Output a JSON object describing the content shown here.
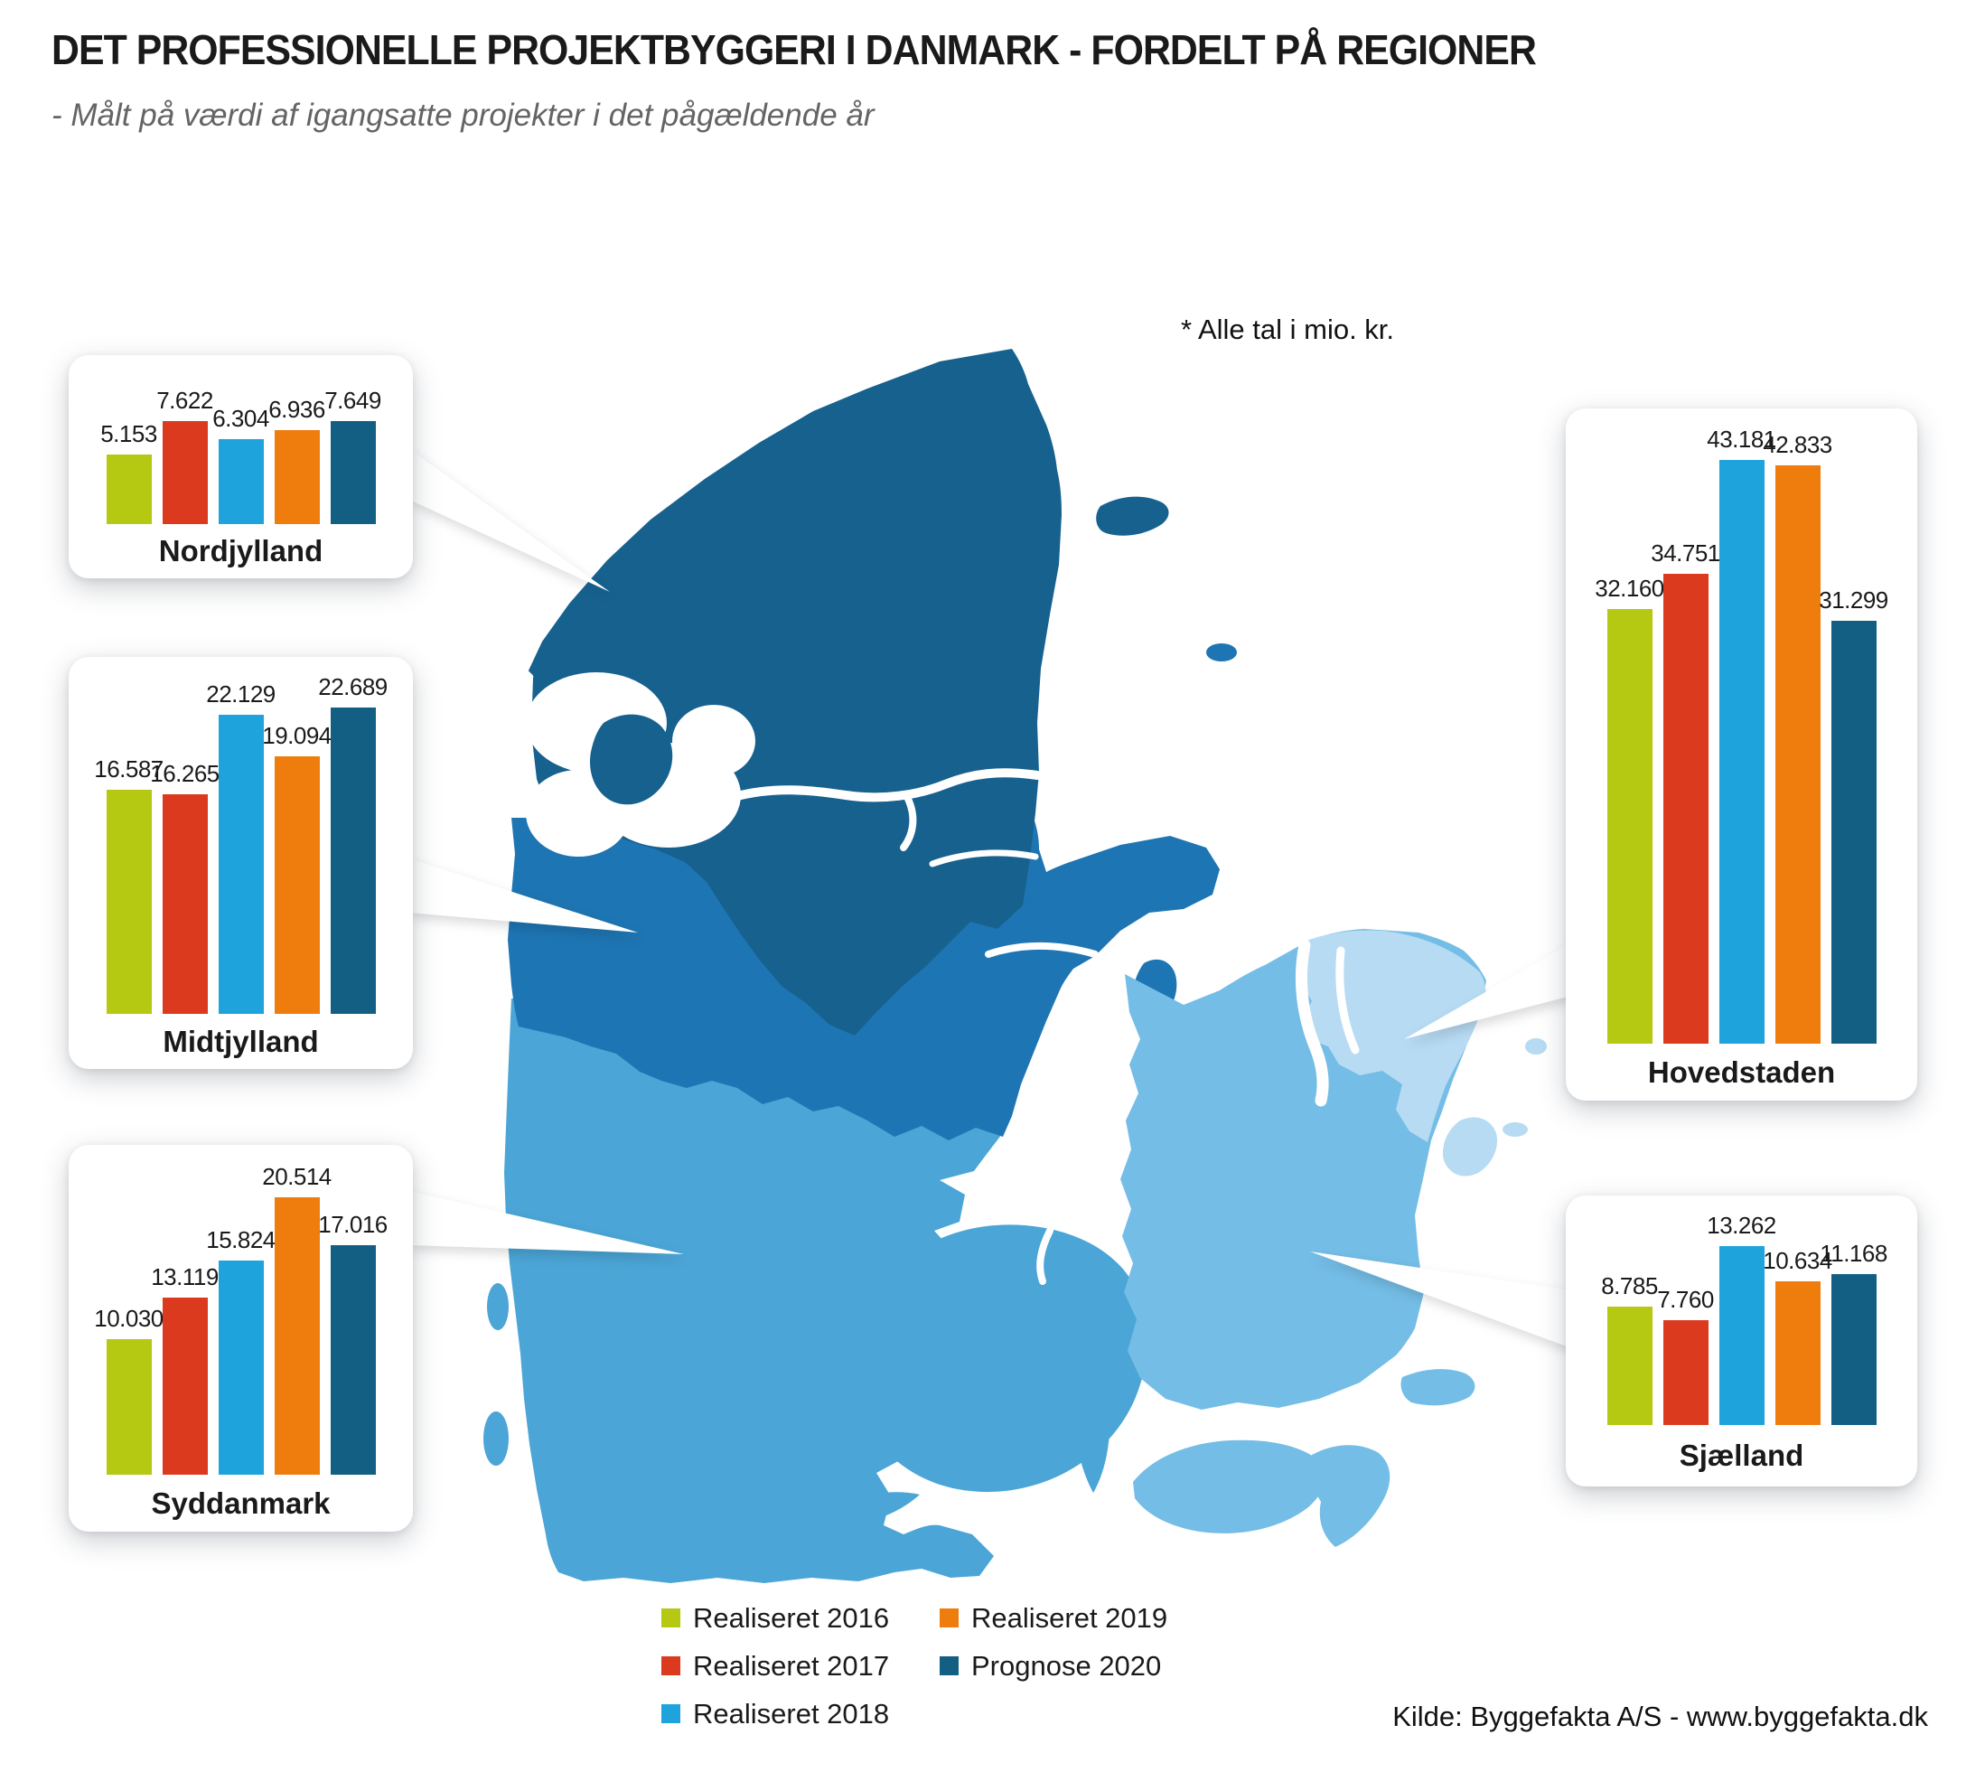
{
  "header": {
    "title": "DET PROFESSIONELLE PROJEKTBYGGERI I DANMARK - FORDELT PÅ REGIONER",
    "subtitle": "- Målt på værdi af igangsatte projekter i det pågældende år"
  },
  "note": "* Alle tal i mio. kr.",
  "source": "Kilde: Byggefakta A/S - www.byggefakta.dk",
  "series": [
    {
      "label": "Realiseret 2016",
      "color": "#b5c812"
    },
    {
      "label": "Realiseret 2017",
      "color": "#dc3a1e"
    },
    {
      "label": "Realiseret 2018",
      "color": "#1fa3dc"
    },
    {
      "label": "Realiseret 2019",
      "color": "#ee7d0e"
    },
    {
      "label": "Prognose 2020",
      "color": "#135e83"
    }
  ],
  "regions": [
    {
      "id": "nordjylland",
      "name": "Nordjylland",
      "values": [
        5153,
        7622,
        6304,
        6936,
        7649
      ],
      "labels": [
        "5.153",
        "7.622",
        "6.304",
        "6.936",
        "7.649"
      ]
    },
    {
      "id": "midtjylland",
      "name": "Midtjylland",
      "values": [
        16587,
        16265,
        22129,
        19094,
        22689
      ],
      "labels": [
        "16.587",
        "16.265",
        "22.129",
        "19.094",
        "22.689"
      ]
    },
    {
      "id": "syddanmark",
      "name": "Syddanmark",
      "values": [
        10030,
        13119,
        15824,
        20514,
        17016
      ],
      "labels": [
        "10.030",
        "13.119",
        "15.824",
        "20.514",
        "17.016"
      ]
    },
    {
      "id": "hovedstaden",
      "name": "Hovedstaden",
      "values": [
        32160,
        34751,
        43181,
        42833,
        31299
      ],
      "labels": [
        "32.160",
        "34.751",
        "43.181",
        "42.833",
        "31.299"
      ]
    },
    {
      "id": "sjaelland",
      "name": "Sjælland",
      "values": [
        8785,
        7760,
        13262,
        10634,
        11168
      ],
      "labels": [
        "8.785",
        "7.760",
        "13.262",
        "10.634",
        "11.168"
      ]
    }
  ],
  "map": {
    "region_colors": {
      "nordjylland": "#17618f",
      "midtjylland": "#1e75b3",
      "syddanmark": "#4ba5d6",
      "sjaelland": "#74bde6",
      "hovedstaden": "#b7dbf3"
    },
    "callout_color": "#ffffff"
  },
  "chart_data": {
    "type": "bar",
    "title": "DET PROFESSIONELLE PROJEKTBYGGERI I DANMARK - FORDELT PÅ REGIONER",
    "subtitle": "- Målt på værdi af igangsatte projekter i det pågældende år",
    "unit": "mio. kr.",
    "categories": [
      "Realiseret 2016",
      "Realiseret 2017",
      "Realiseret 2018",
      "Realiseret 2019",
      "Prognose 2020"
    ],
    "series": [
      {
        "name": "Nordjylland",
        "values": [
          5153,
          7622,
          6304,
          6936,
          7649
        ]
      },
      {
        "name": "Midtjylland",
        "values": [
          16587,
          16265,
          22129,
          19094,
          22689
        ]
      },
      {
        "name": "Syddanmark",
        "values": [
          10030,
          13119,
          15824,
          20514,
          17016
        ]
      },
      {
        "name": "Hovedstaden",
        "values": [
          32160,
          34751,
          43181,
          42833,
          31299
        ]
      },
      {
        "name": "Sjælland",
        "values": [
          8785,
          7760,
          13262,
          10634,
          11168
        ]
      }
    ],
    "legend_position": "bottom",
    "grid": false,
    "ylim": [
      0,
      45000
    ]
  }
}
